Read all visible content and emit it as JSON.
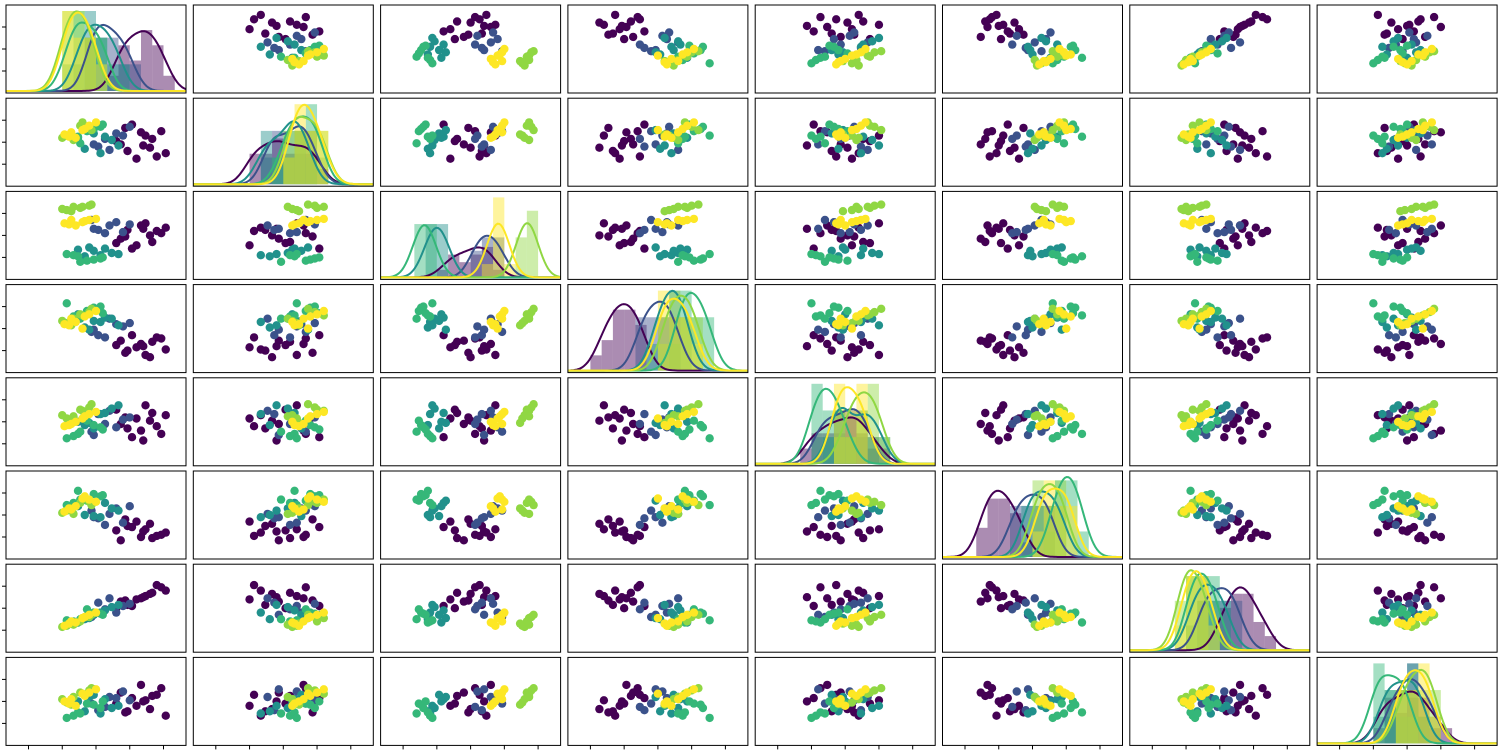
{
  "chart_data": {
    "type": "pairplot",
    "xlim": [
      -4,
      4
    ],
    "ylim": [
      -4,
      4
    ],
    "xticks": [
      -3,
      -1.5,
      0,
      1.5,
      3
    ],
    "yticks": [
      -2,
      0,
      2
    ],
    "series": [
      {
        "color": "#440154",
        "points": [
          [
            2.5,
            0.3,
            -0.6,
            -1.2,
            0.8,
            -2.1,
            1.4,
            0.5
          ],
          [
            1.4,
            -0.8,
            0.5,
            -2.0,
            -0.6,
            -1.0,
            0.3,
            -0.9
          ],
          [
            2.9,
            1.0,
            0.2,
            -0.9,
            -1.1,
            -1.8,
            1.9,
            1.2
          ],
          [
            1.8,
            -1.5,
            -0.9,
            -1.7,
            0.3,
            -0.6,
            0.8,
            -0.4
          ],
          [
            2.2,
            0.6,
            1.1,
            -2.4,
            1.5,
            -1.3,
            1.1,
            0.1
          ],
          [
            1.1,
            -0.2,
            -0.3,
            -1.1,
            -0.2,
            -2.3,
            0.6,
            0.8
          ],
          [
            3.1,
            -1.0,
            0.7,
            -1.9,
            0.6,
            -1.6,
            1.6,
            -1.3
          ],
          [
            1.6,
            1.6,
            -1.2,
            -0.6,
            -1.4,
            -1.1,
            0.2,
            0.3
          ],
          [
            2.4,
            -0.5,
            0.0,
            -2.6,
            0.1,
            -0.8,
            1.3,
            -0.7
          ],
          [
            2.0,
            0.9,
            0.9,
            -1.4,
            -0.8,
            -2.0,
            0.9,
            1.5
          ],
          [
            0.9,
            0.1,
            -0.7,
            -1.5,
            1.1,
            -1.4,
            0.0,
            -0.2
          ],
          [
            2.7,
            -1.3,
            0.4,
            -0.8,
            -0.4,
            -1.9,
            2.1,
            0.6
          ],
          [
            1.3,
            1.3,
            -0.1,
            -2.2,
            0.4,
            -0.4,
            0.7,
            -1.0
          ],
          [
            2.1,
            -0.3,
            0.6,
            -1.6,
            -1.7,
            -1.5,
            1.0,
            0.0
          ]
        ]
      },
      {
        "color": "#3b528b",
        "points": [
          [
            0.9,
            0.8,
            1.2,
            0.4,
            -0.5,
            0.6,
            -0.4,
            0.3
          ],
          [
            0.1,
            -0.4,
            0.5,
            -0.6,
            0.7,
            -0.3,
            0.5,
            -0.8
          ],
          [
            1.2,
            0.6,
            0.3,
            0.2,
            0.2,
            -0.7,
            0.2,
            0.9
          ],
          [
            -0.2,
            1.0,
            1.4,
            -0.3,
            -0.9,
            0.4,
            -0.8,
            -0.2
          ],
          [
            0.6,
            -0.7,
            0.9,
            0.9,
            1.0,
            0.1,
            0.9,
            0.4
          ],
          [
            0.4,
            0.3,
            0.2,
            -0.8,
            -0.2,
            -0.9,
            -0.1,
            -0.5
          ],
          [
            1.5,
            1.4,
            1.0,
            0.5,
            0.4,
            0.8,
            0.4,
            0.1
          ],
          [
            -0.1,
            -0.2,
            0.6,
            -0.1,
            -1.2,
            -0.2,
            -0.6,
            1.1
          ]
        ]
      },
      {
        "color": "#21918c",
        "points": [
          [
            0.4,
            0.5,
            -1.2,
            1.0,
            0.8,
            1.1,
            -0.2,
            0.2
          ],
          [
            -0.5,
            -0.6,
            -1.9,
            0.1,
            -0.3,
            0.0,
            -1.0,
            -0.9
          ],
          [
            0.7,
            0.2,
            -1.6,
            0.9,
            1.2,
            0.6,
            0.1,
            -0.6
          ],
          [
            -0.3,
            1.1,
            -1.1,
            -0.1,
            -0.1,
            1.3,
            -0.9,
            0.4
          ],
          [
            0.2,
            -1.0,
            -1.8,
            0.6,
            0.7,
            -0.2,
            -0.4,
            -1.1
          ],
          [
            -0.8,
            0.4,
            -1.3,
            1.3,
            0.0,
            0.8,
            -1.3,
            0.0
          ],
          [
            1.0,
            -0.3,
            -1.7,
            0.3,
            1.5,
            0.4,
            0.3,
            -0.4
          ],
          [
            -0.1,
            0.8,
            -1.4,
            0.7,
            -0.6,
            -0.1,
            -0.6,
            0.6
          ]
        ]
      },
      {
        "color": "#35b779",
        "points": [
          [
            -0.1,
            1.2,
            -2.2,
            1.9,
            -0.3,
            1.9,
            -0.4,
            -0.3
          ],
          [
            -1.0,
            0.3,
            -1.8,
            1.1,
            -1.3,
            1.1,
            -1.2,
            -1.3
          ],
          [
            0.2,
            1.4,
            -2.1,
            2.0,
            -0.5,
            1.7,
            -0.5,
            -0.6
          ],
          [
            -0.8,
            0.5,
            -1.9,
            1.2,
            -1.1,
            2.2,
            -1.3,
            -1.0
          ],
          [
            -0.4,
            1.0,
            -2.3,
            1.6,
            0.1,
            1.3,
            -0.1,
            -0.2
          ],
          [
            -1.3,
            0.6,
            -1.7,
            2.3,
            -1.5,
            0.9,
            -1.1,
            -1.5
          ],
          [
            0.3,
            1.6,
            -2.0,
            1.4,
            -0.7,
            1.8,
            -0.6,
            0.0
          ],
          [
            -0.7,
            -0.1,
            -2.4,
            0.9,
            -0.9,
            1.4,
            -1.0,
            -1.1
          ]
        ]
      },
      {
        "color": "#90d743",
        "points": [
          [
            -0.3,
            1.4,
            2.7,
            1.5,
            1.3,
            1.2,
            -0.8,
            1.0
          ],
          [
            -1.3,
            0.6,
            2.3,
            0.5,
            0.3,
            0.4,
            -1.6,
            -0.1
          ],
          [
            -0.6,
            1.8,
            2.6,
            1.2,
            1.0,
            1.4,
            -0.9,
            0.7
          ],
          [
            -1.5,
            0.4,
            2.4,
            0.7,
            0.6,
            0.2,
            -1.7,
            0.2
          ],
          [
            -0.2,
            1.1,
            2.8,
            1.8,
            1.6,
            0.9,
            -0.6,
            1.2
          ],
          [
            -1.1,
            0.7,
            2.2,
            0.3,
            -0.1,
            0.6,
            -1.4,
            -0.3
          ],
          [
            -0.7,
            1.5,
            2.5,
            1.3,
            1.1,
            1.1,
            -1.2,
            0.8
          ],
          [
            -1.0,
            0.2,
            2.6,
            0.9,
            0.5,
            0.1,
            -1.5,
            0.4
          ]
        ]
      },
      {
        "color": "#fde725",
        "points": [
          [
            -0.3,
            1.5,
            1.4,
            1.3,
            0.7,
            1.4,
            -0.6,
            0.8
          ],
          [
            -1.2,
            0.5,
            1.0,
            0.3,
            -0.3,
            0.6,
            -1.4,
            -0.2
          ],
          [
            -0.5,
            1.2,
            1.3,
            1.1,
            0.5,
            1.7,
            -0.8,
            0.5
          ],
          [
            -1.4,
            0.7,
            1.1,
            0.4,
            -0.4,
            0.3,
            -1.6,
            0.0
          ],
          [
            0.0,
            1.8,
            1.5,
            1.6,
            0.9,
            1.2,
            -0.4,
            1.1
          ],
          [
            -0.9,
            0.4,
            0.9,
            0.6,
            0.0,
            0.8,
            -1.3,
            -0.4
          ],
          [
            -0.6,
            1.1,
            1.2,
            0.0,
            0.3,
            1.5,
            -0.9,
            0.7
          ],
          [
            -1.1,
            0.9,
            1.4,
            0.9,
            -0.2,
            0.5,
            -1.2,
            0.2
          ]
        ]
      }
    ]
  }
}
